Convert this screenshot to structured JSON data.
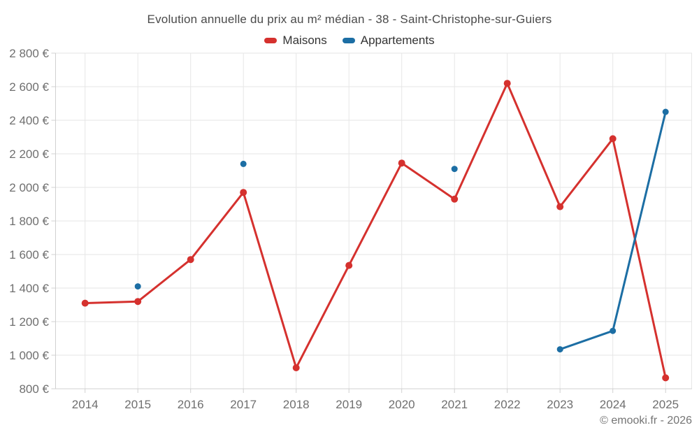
{
  "chart_data": {
    "type": "line",
    "title": "Evolution annuelle du prix au m² médian - 38 - Saint-Christophe-sur-Guiers",
    "footer": "© emooki.fr - 2026",
    "categories": [
      "2014",
      "2015",
      "2016",
      "2017",
      "2018",
      "2019",
      "2020",
      "2021",
      "2022",
      "2023",
      "2024",
      "2025"
    ],
    "series": [
      {
        "name": "Maisons",
        "color": "#d5312e",
        "marker_radius": 5,
        "values": [
          1310,
          1320,
          1570,
          1970,
          925,
          1535,
          2145,
          1930,
          2620,
          1885,
          2290,
          865
        ]
      },
      {
        "name": "Appartements",
        "color": "#1c6ea4",
        "marker_radius": 4.5,
        "values": [
          null,
          1410,
          null,
          2140,
          null,
          null,
          null,
          2110,
          null,
          1035,
          1145,
          2450
        ]
      }
    ],
    "ylim": [
      800,
      2800
    ],
    "y_ticks": [
      {
        "value": 800,
        "label": "800 €"
      },
      {
        "value": 1000,
        "label": "1 000 €"
      },
      {
        "value": 1200,
        "label": "1 200 €"
      },
      {
        "value": 1400,
        "label": "1 400 €"
      },
      {
        "value": 1600,
        "label": "1 600 €"
      },
      {
        "value": 1800,
        "label": "1 800 €"
      },
      {
        "value": 2000,
        "label": "2 000 €"
      },
      {
        "value": 2200,
        "label": "2 200 €"
      },
      {
        "value": 2400,
        "label": "2 400 €"
      },
      {
        "value": 2600,
        "label": "2 600 €"
      },
      {
        "value": 2800,
        "label": "2 800 €"
      }
    ],
    "grid": true,
    "legend_position": "top-center",
    "colors": {
      "background": "#ffffff",
      "grid": "#e6e6e6",
      "axis": "#d0d0d0",
      "axis_label": "#6f6f6f",
      "title": "#4a4a4a",
      "legend_label": "#333333",
      "footer": "#757575"
    }
  }
}
